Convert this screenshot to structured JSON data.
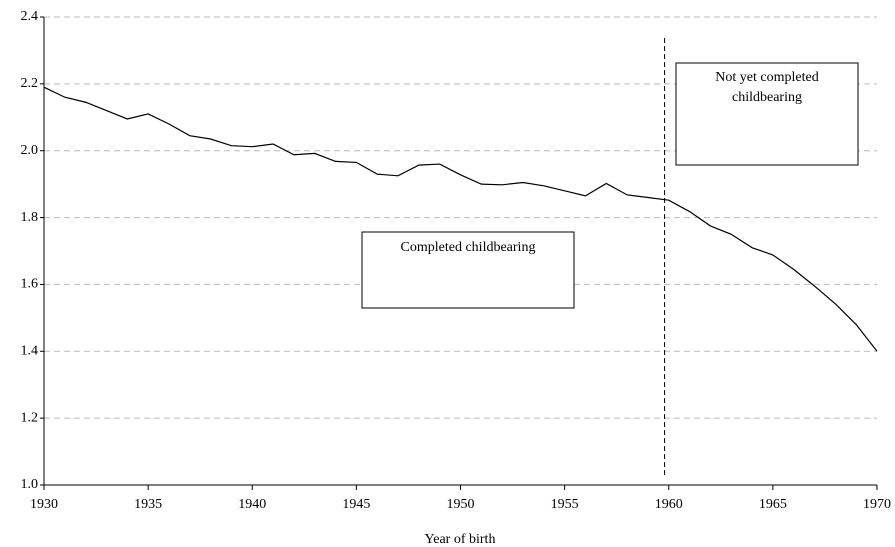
{
  "chart_data": {
    "type": "line",
    "x_label": "Year of birth",
    "x": [
      1930,
      1931,
      1932,
      1933,
      1934,
      1935,
      1936,
      1937,
      1938,
      1939,
      1940,
      1941,
      1942,
      1943,
      1944,
      1945,
      1946,
      1947,
      1948,
      1949,
      1950,
      1951,
      1952,
      1953,
      1954,
      1955,
      1956,
      1957,
      1958,
      1959,
      1960,
      1961,
      1962,
      1963,
      1964,
      1965,
      1966,
      1967,
      1968,
      1969,
      1970
    ],
    "series": [
      {
        "color": "#000000",
        "values": [
          2.19,
          2.16,
          2.145,
          2.12,
          2.095,
          2.11,
          2.08,
          2.045,
          2.035,
          2.015,
          2.012,
          2.02,
          1.988,
          1.992,
          1.968,
          1.965,
          1.93,
          1.925,
          1.957,
          1.96,
          1.928,
          1.9,
          1.898,
          1.905,
          1.895,
          1.88,
          1.865,
          1.902,
          1.868,
          1.86,
          1.852,
          1.818,
          1.775,
          1.75,
          1.71,
          1.688,
          1.645,
          1.595,
          1.542,
          1.48,
          1.4
        ]
      }
    ],
    "xlim": [
      1930,
      1970
    ],
    "xticks": [
      1930,
      1935,
      1940,
      1945,
      1950,
      1955,
      1960,
      1965,
      1970
    ],
    "ylim": [
      1.0,
      2.4
    ],
    "yticks": [
      {
        "value": 1,
        "label": "1.0"
      },
      1.2,
      1.4,
      1.6,
      1.8,
      {
        "value": 2,
        "label": "2.0"
      },
      2.2,
      2.4
    ],
    "grid": true,
    "reference_line_x": 1959.8,
    "annotations": [
      {
        "lines": [
          "Completed childbearing"
        ]
      },
      {
        "lines": [
          "Not yet completed",
          "childbearing"
        ]
      }
    ]
  }
}
